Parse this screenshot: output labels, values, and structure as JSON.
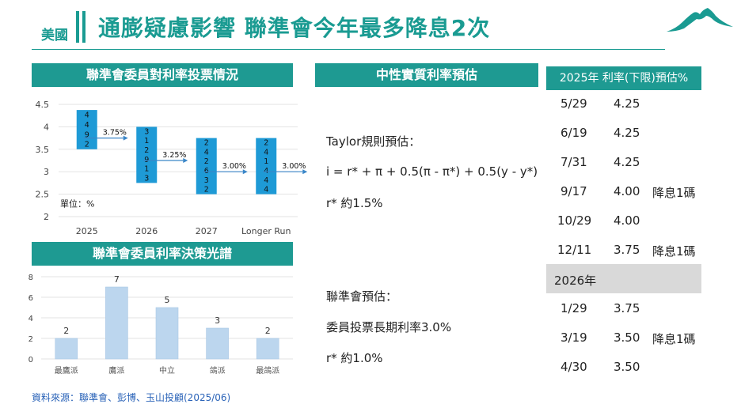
{
  "header": {
    "tag": "美國",
    "title": "通膨疑慮影響 聯準會今年最多降息2次"
  },
  "panel_dots": {
    "title": "聯準會委員對利率投票情況",
    "chart_data": {
      "type": "scatter",
      "categories": [
        "2025",
        "2026",
        "2027",
        "Longer Run"
      ],
      "ylim": [
        2,
        4.5
      ],
      "yticks": [
        "4.5",
        "4",
        "3.5",
        "3",
        "2.5",
        "2"
      ],
      "unit_label": "單位：%",
      "columns": [
        {
          "category": "2025",
          "digits": [
            "4",
            "4",
            "9",
            "2"
          ],
          "median": 3.75,
          "median_label": "3.75%",
          "range": [
            3.5,
            4.375
          ]
        },
        {
          "category": "2026",
          "digits": [
            "3",
            "1",
            "2",
            "9",
            "1",
            "3"
          ],
          "median": 3.25,
          "median_label": "3.25%",
          "range": [
            2.75,
            4.0
          ]
        },
        {
          "category": "2027",
          "digits": [
            "2",
            "4",
            "2",
            "6",
            "3",
            "2"
          ],
          "median": 3.0,
          "median_label": "3.00%",
          "range": [
            2.5,
            3.75
          ]
        },
        {
          "category": "Longer Run",
          "digits": [
            "2",
            "4",
            "1",
            "4",
            "4",
            "4"
          ],
          "median": 3.0,
          "median_label": "3.00%",
          "range": [
            2.5,
            3.75
          ]
        }
      ]
    }
  },
  "panel_bars": {
    "title": "聯準會委員利率決策光譜",
    "chart_data": {
      "type": "bar",
      "categories": [
        "最鷹派",
        "鷹派",
        "中立",
        "鴿派",
        "最鴿派"
      ],
      "values": [
        2,
        7,
        5,
        3,
        2
      ],
      "ylim": [
        0,
        8
      ],
      "yticks": [
        "8",
        "6",
        "4",
        "2",
        "0"
      ],
      "bar_color": "#bcd6ee"
    }
  },
  "panel_mid": {
    "title": "中性實質利率預估",
    "taylor_label": "Taylor規則預估：",
    "formula": "i = r* + π + 0.5(π - π*) + 0.5(y - y*)",
    "taylor_result": "r* 約1.5%",
    "fed_label": "聯準會預估：",
    "fed_longrun": "委員投票長期利率3.0%",
    "fed_result": "r* 約1.0%"
  },
  "table": {
    "header": "2025年  利率(下限)預估%",
    "rows_2025": [
      {
        "date": "5/29",
        "rate": "4.25",
        "note": ""
      },
      {
        "date": "6/19",
        "rate": "4.25",
        "note": ""
      },
      {
        "date": "7/31",
        "rate": "4.25",
        "note": ""
      },
      {
        "date": "9/17",
        "rate": "4.00",
        "note": "降息1碼"
      },
      {
        "date": "10/29",
        "rate": "4.00",
        "note": ""
      },
      {
        "date": "12/11",
        "rate": "3.75",
        "note": "降息1碼"
      }
    ],
    "year2026": "2026年",
    "rows_2026": [
      {
        "date": "1/29",
        "rate": "3.75",
        "note": ""
      },
      {
        "date": "3/19",
        "rate": "3.50",
        "note": "降息1碼"
      },
      {
        "date": "4/30",
        "rate": "3.50",
        "note": ""
      }
    ]
  },
  "footer": {
    "source": "資料來源：聯準會、彭博、玉山投顧(2025/06)"
  },
  "colors": {
    "teal": "#1e9a92",
    "title_teal": "#1a9b92",
    "dot_box": "#1e9ad6",
    "arrow": "#3a86c8",
    "gray_row": "#d9d9d9",
    "source_blue": "#2a63b8"
  }
}
